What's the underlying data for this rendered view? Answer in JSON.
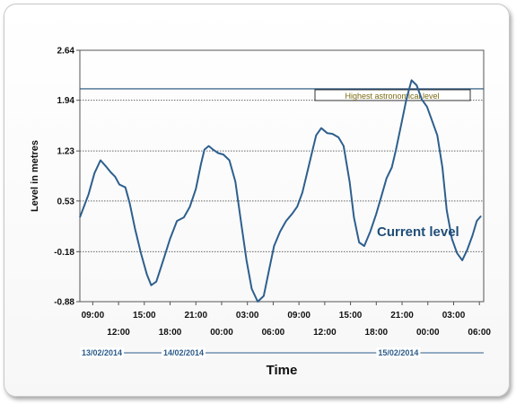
{
  "chart_data": {
    "type": "line",
    "ylabel": "Level in metres",
    "xlabel": "Time",
    "ylim": [
      -0.88,
      2.64
    ],
    "yticks": [
      "-0.88",
      "-0.18",
      "0.53",
      "1.23",
      "1.94",
      "2.64"
    ],
    "ytick_values": [
      -0.88,
      -0.18,
      0.53,
      1.23,
      1.94,
      2.64
    ],
    "xlim_hours": [
      7.5,
      54.5
    ],
    "xtick_labels_upper": [
      "09:00",
      "15:00",
      "21:00",
      "03:00",
      "09:00",
      "15:00",
      "21:00",
      "03:00"
    ],
    "xtick_labels_lower": [
      "12:00",
      "18:00",
      "00:00",
      "06:00",
      "12:00",
      "18:00",
      "00:00",
      "06:00"
    ],
    "xtick_hours_upper": [
      9,
      15,
      21,
      27,
      33,
      39,
      45,
      51
    ],
    "xtick_hours_lower": [
      12,
      18,
      24,
      30,
      36,
      42,
      48,
      54
    ],
    "dates": [
      {
        "label": "13/02/2014",
        "start_hour": 7.5,
        "end_hour": 17
      },
      {
        "label": "14/02/2014",
        "start_hour": 17,
        "end_hour": 42
      },
      {
        "label": "15/02/2014",
        "start_hour": 42,
        "end_hour": 54.5
      }
    ],
    "reference_line": {
      "label": "Highest astronomical level",
      "value": 2.1,
      "color": "#1f4e79"
    },
    "grid": true,
    "series": [
      {
        "name": "Current level",
        "color": "#2e5f8e",
        "x": [
          7.5,
          8.5,
          9.2,
          9.9,
          10.5,
          11.1,
          11.6,
          12.1,
          12.8,
          13.3,
          13.9,
          14.6,
          15.3,
          15.8,
          16.4,
          17.2,
          18.0,
          18.8,
          19.6,
          20.3,
          21.0,
          21.6,
          22.0,
          22.5,
          23.0,
          23.6,
          24.2,
          24.9,
          25.6,
          26.3,
          26.9,
          27.5,
          28.2,
          28.9,
          29.5,
          30.1,
          30.8,
          31.5,
          32.2,
          32.8,
          33.4,
          33.9,
          34.5,
          35.0,
          35.6,
          36.3,
          36.9,
          37.6,
          38.2,
          38.9,
          39.4,
          40.0,
          40.6,
          41.3,
          42.0,
          42.6,
          43.2,
          43.8,
          44.3,
          44.9,
          45.5,
          46.1,
          46.7,
          47.3,
          47.9,
          48.5,
          49.1,
          49.7,
          50.2,
          50.8,
          51.4,
          52.0,
          52.6,
          53.2,
          53.7,
          54.2
        ],
        "values": [
          0.3,
          0.62,
          0.92,
          1.1,
          1.02,
          0.93,
          0.87,
          0.76,
          0.72,
          0.5,
          0.15,
          -0.2,
          -0.5,
          -0.65,
          -0.6,
          -0.3,
          0.0,
          0.25,
          0.3,
          0.45,
          0.7,
          1.05,
          1.25,
          1.3,
          1.25,
          1.2,
          1.18,
          1.1,
          0.8,
          0.2,
          -0.3,
          -0.7,
          -0.88,
          -0.8,
          -0.45,
          -0.1,
          0.1,
          0.25,
          0.35,
          0.45,
          0.65,
          0.9,
          1.2,
          1.45,
          1.55,
          1.48,
          1.47,
          1.42,
          1.3,
          0.8,
          0.3,
          -0.05,
          -0.1,
          0.1,
          0.35,
          0.6,
          0.85,
          1.0,
          1.25,
          1.6,
          1.95,
          2.22,
          2.15,
          1.95,
          1.85,
          1.65,
          1.45,
          1.0,
          0.4,
          0.0,
          -0.2,
          -0.3,
          -0.15,
          0.05,
          0.25,
          0.32
        ]
      }
    ]
  }
}
